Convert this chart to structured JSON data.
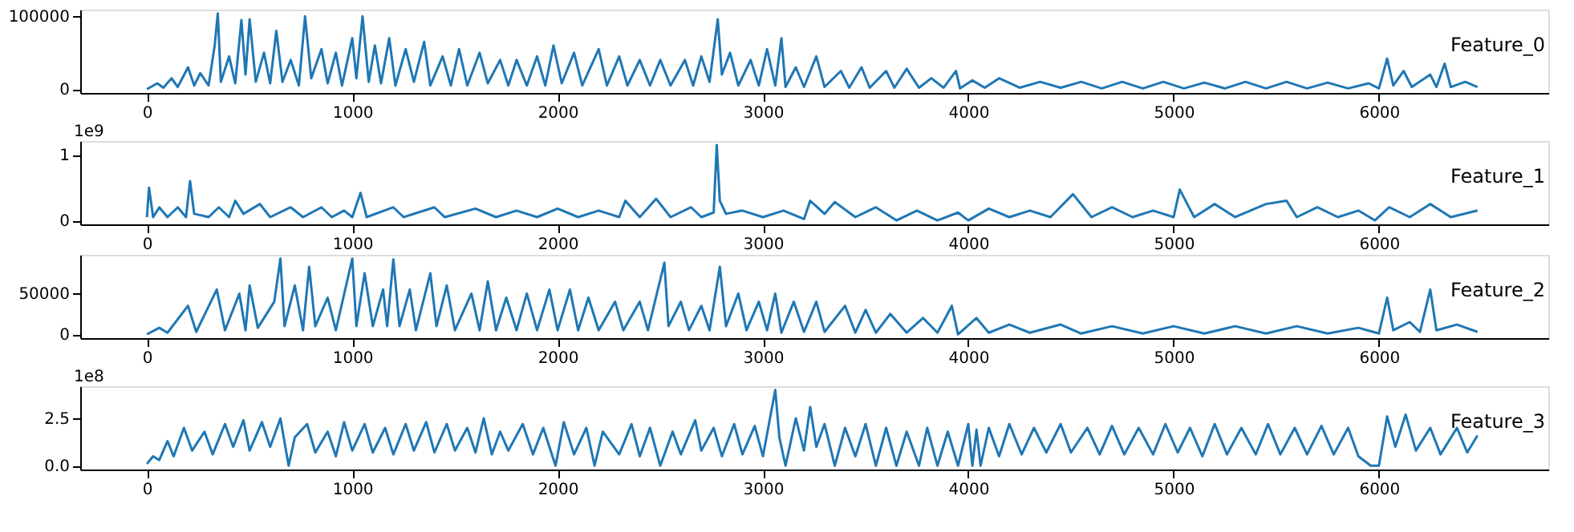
{
  "chart_data": [
    {
      "type": "line",
      "title": "Feature_0",
      "color": "#1f77b4",
      "xlim": [
        -325,
        6825
      ],
      "xticks": [
        0,
        1000,
        2000,
        3000,
        4000,
        5000,
        6000
      ],
      "ylim": [
        -5200,
        109200
      ],
      "yticks": [
        0,
        100000
      ],
      "x": [
        0,
        50,
        80,
        120,
        150,
        200,
        230,
        260,
        300,
        330,
        345,
        360,
        400,
        430,
        460,
        480,
        500,
        530,
        570,
        600,
        630,
        660,
        700,
        740,
        770,
        800,
        850,
        880,
        920,
        950,
        1000,
        1020,
        1050,
        1080,
        1110,
        1140,
        1180,
        1210,
        1260,
        1300,
        1350,
        1380,
        1440,
        1480,
        1520,
        1560,
        1620,
        1660,
        1720,
        1760,
        1800,
        1850,
        1900,
        1940,
        1980,
        2020,
        2080,
        2120,
        2200,
        2240,
        2300,
        2340,
        2400,
        2450,
        2500,
        2550,
        2620,
        2660,
        2700,
        2740,
        2780,
        2800,
        2840,
        2880,
        2940,
        2980,
        3020,
        3060,
        3090,
        3110,
        3160,
        3200,
        3260,
        3300,
        3380,
        3420,
        3480,
        3520,
        3600,
        3640,
        3700,
        3760,
        3820,
        3880,
        3940,
        3960,
        4020,
        4080,
        4150,
        4250,
        4350,
        4450,
        4550,
        4650,
        4750,
        4850,
        4950,
        5050,
        5150,
        5250,
        5350,
        5450,
        5550,
        5650,
        5750,
        5850,
        5950,
        6000,
        6040,
        6070,
        6120,
        6160,
        6250,
        6280,
        6320,
        6350,
        6420,
        6480
      ],
      "values": [
        0,
        8000,
        2000,
        15000,
        3000,
        30000,
        5000,
        22000,
        5000,
        60000,
        104000,
        10000,
        45000,
        8000,
        95000,
        20000,
        96000,
        10000,
        50000,
        8000,
        80000,
        10000,
        40000,
        5000,
        100000,
        15000,
        55000,
        8000,
        50000,
        5000,
        70000,
        15000,
        100000,
        10000,
        60000,
        8000,
        70000,
        5000,
        55000,
        10000,
        65000,
        5000,
        45000,
        5000,
        55000,
        5000,
        50000,
        8000,
        40000,
        5000,
        40000,
        5000,
        45000,
        5000,
        60000,
        8000,
        50000,
        5000,
        55000,
        5000,
        45000,
        5000,
        40000,
        5000,
        40000,
        5000,
        40000,
        5000,
        45000,
        10000,
        96000,
        20000,
        50000,
        5000,
        40000,
        5000,
        55000,
        5000,
        70000,
        3000,
        30000,
        3000,
        45000,
        3000,
        25000,
        2000,
        30000,
        2000,
        25000,
        2000,
        28000,
        2000,
        15000,
        2000,
        25000,
        1000,
        12000,
        2000,
        15000,
        2000,
        10000,
        2000,
        10000,
        1000,
        10000,
        1000,
        10000,
        1000,
        9000,
        1000,
        10000,
        1000,
        10000,
        1000,
        9000,
        1000,
        8000,
        1000,
        42000,
        5000,
        25000,
        3000,
        20000,
        3000,
        35000,
        3000,
        10000,
        3000
      ]
    },
    {
      "type": "line",
      "title": "Feature_1",
      "annotations": [
        "1e9"
      ],
      "color": "#1f77b4",
      "xlim": [
        -325,
        6825
      ],
      "xticks": [
        0,
        1000,
        2000,
        3000,
        4000,
        5000,
        6000
      ],
      "ylim": [
        -0.06,
        1.21
      ],
      "yticks": [
        0,
        1
      ],
      "x": [
        0,
        10,
        30,
        60,
        100,
        150,
        190,
        210,
        230,
        300,
        350,
        400,
        430,
        470,
        550,
        600,
        700,
        760,
        850,
        900,
        960,
        1000,
        1040,
        1070,
        1200,
        1250,
        1400,
        1450,
        1600,
        1700,
        1800,
        1900,
        2000,
        2100,
        2200,
        2300,
        2330,
        2400,
        2480,
        2550,
        2650,
        2700,
        2760,
        2775,
        2790,
        2820,
        2900,
        3000,
        3100,
        3200,
        3230,
        3300,
        3350,
        3450,
        3550,
        3650,
        3750,
        3850,
        3950,
        4000,
        4100,
        4200,
        4300,
        4400,
        4510,
        4600,
        4700,
        4800,
        4900,
        5000,
        5030,
        5100,
        5200,
        5300,
        5450,
        5550,
        5600,
        5700,
        5800,
        5900,
        5980,
        6050,
        6150,
        6250,
        6350,
        6480
      ],
      "values": [
        0.05,
        0.5,
        0.05,
        0.2,
        0.05,
        0.2,
        0.05,
        0.6,
        0.1,
        0.05,
        0.2,
        0.05,
        0.3,
        0.1,
        0.25,
        0.05,
        0.2,
        0.05,
        0.2,
        0.05,
        0.15,
        0.05,
        0.42,
        0.05,
        0.2,
        0.05,
        0.2,
        0.05,
        0.18,
        0.05,
        0.15,
        0.05,
        0.18,
        0.05,
        0.15,
        0.05,
        0.3,
        0.05,
        0.33,
        0.05,
        0.2,
        0.05,
        0.12,
        1.15,
        0.3,
        0.1,
        0.15,
        0.05,
        0.15,
        0.02,
        0.3,
        0.1,
        0.28,
        0.05,
        0.2,
        0.0,
        0.15,
        0.0,
        0.12,
        0.0,
        0.18,
        0.05,
        0.15,
        0.05,
        0.4,
        0.05,
        0.2,
        0.05,
        0.15,
        0.05,
        0.47,
        0.05,
        0.25,
        0.05,
        0.25,
        0.3,
        0.05,
        0.2,
        0.05,
        0.15,
        0.0,
        0.2,
        0.05,
        0.25,
        0.05,
        0.15
      ]
    },
    {
      "type": "line",
      "title": "Feature_2",
      "color": "#1f77b4",
      "xlim": [
        -325,
        6825
      ],
      "xticks": [
        0,
        1000,
        2000,
        3000,
        4000,
        5000,
        6000
      ],
      "ylim": [
        -4650,
        97650
      ],
      "yticks": [
        0,
        50000
      ],
      "x": [
        0,
        60,
        100,
        200,
        240,
        340,
        380,
        450,
        480,
        500,
        540,
        620,
        650,
        670,
        720,
        760,
        790,
        820,
        880,
        920,
        1000,
        1020,
        1060,
        1100,
        1150,
        1170,
        1200,
        1230,
        1280,
        1310,
        1380,
        1410,
        1460,
        1500,
        1580,
        1620,
        1660,
        1700,
        1750,
        1800,
        1850,
        1900,
        1960,
        2000,
        2060,
        2100,
        2150,
        2200,
        2280,
        2320,
        2400,
        2440,
        2520,
        2540,
        2600,
        2640,
        2700,
        2740,
        2790,
        2820,
        2880,
        2920,
        2980,
        3020,
        3060,
        3090,
        3150,
        3200,
        3260,
        3300,
        3400,
        3450,
        3500,
        3550,
        3620,
        3700,
        3780,
        3850,
        3920,
        3950,
        4040,
        4100,
        4200,
        4300,
        4450,
        4550,
        4700,
        4850,
        5000,
        5150,
        5300,
        5450,
        5600,
        5750,
        5900,
        6000,
        6040,
        6070,
        6150,
        6200,
        6250,
        6280,
        6380,
        6480
      ],
      "values": [
        0,
        8000,
        2000,
        35000,
        3000,
        55000,
        5000,
        50000,
        5000,
        60000,
        8000,
        40000,
        93000,
        10000,
        60000,
        5000,
        83000,
        10000,
        45000,
        5000,
        93000,
        10000,
        75000,
        10000,
        55000,
        10000,
        92000,
        10000,
        55000,
        5000,
        75000,
        10000,
        60000,
        5000,
        50000,
        5000,
        65000,
        5000,
        45000,
        5000,
        50000,
        5000,
        55000,
        5000,
        55000,
        5000,
        45000,
        5000,
        40000,
        5000,
        40000,
        5000,
        88000,
        10000,
        40000,
        5000,
        35000,
        5000,
        83000,
        10000,
        50000,
        5000,
        40000,
        5000,
        50000,
        2000,
        40000,
        3000,
        40000,
        3000,
        35000,
        2000,
        30000,
        2000,
        25000,
        2000,
        20000,
        2000,
        35000,
        0,
        20000,
        2000,
        12000,
        2000,
        12000,
        1000,
        10000,
        1000,
        10000,
        1000,
        10000,
        1000,
        10000,
        1000,
        8000,
        1000,
        45000,
        5000,
        15000,
        3000,
        55000,
        5000,
        12000,
        3000
      ]
    },
    {
      "type": "line",
      "title": "Feature_3",
      "annotations": [
        "1e8"
      ],
      "color": "#1f77b4",
      "xlim": [
        -325,
        6825
      ],
      "xticks": [
        0,
        1000,
        2000,
        3000,
        4000,
        5000,
        6000
      ],
      "ylim": [
        -0.2,
        4.2
      ],
      "yticks": [
        {
          "value": 0,
          "label": "0.0"
        },
        {
          "value": 2.5,
          "label": "2.5"
        }
      ],
      "x": [
        0,
        30,
        60,
        100,
        130,
        180,
        220,
        280,
        320,
        380,
        420,
        470,
        500,
        560,
        600,
        650,
        690,
        720,
        780,
        820,
        880,
        920,
        960,
        1000,
        1060,
        1100,
        1160,
        1200,
        1260,
        1300,
        1360,
        1400,
        1460,
        1500,
        1560,
        1600,
        1640,
        1680,
        1720,
        1760,
        1830,
        1880,
        1930,
        1990,
        2030,
        2080,
        2140,
        2180,
        2220,
        2300,
        2360,
        2400,
        2450,
        2500,
        2560,
        2600,
        2670,
        2700,
        2760,
        2800,
        2860,
        2900,
        2960,
        3000,
        3060,
        3080,
        3110,
        3160,
        3200,
        3230,
        3260,
        3300,
        3350,
        3400,
        3450,
        3500,
        3550,
        3600,
        3650,
        3700,
        3760,
        3800,
        3850,
        3900,
        3950,
        4000,
        4020,
        4040,
        4060,
        4100,
        4150,
        4200,
        4260,
        4320,
        4380,
        4450,
        4500,
        4580,
        4640,
        4700,
        4760,
        4830,
        4900,
        4960,
        5020,
        5080,
        5140,
        5200,
        5260,
        5330,
        5400,
        5460,
        5520,
        5590,
        5650,
        5720,
        5780,
        5850,
        5900,
        5960,
        6000,
        6040,
        6080,
        6130,
        6180,
        6250,
        6300,
        6380,
        6430,
        6480
      ],
      "values": [
        0.1,
        0.5,
        0.3,
        1.3,
        0.5,
        2.0,
        0.8,
        1.8,
        0.6,
        2.2,
        1.0,
        2.4,
        0.8,
        2.3,
        1.0,
        2.5,
        0.0,
        1.5,
        2.2,
        0.7,
        1.8,
        0.5,
        2.3,
        0.8,
        2.2,
        0.7,
        2.0,
        0.6,
        2.2,
        0.8,
        2.3,
        0.7,
        2.2,
        0.8,
        2.0,
        0.7,
        2.5,
        0.6,
        1.8,
        0.8,
        2.2,
        0.6,
        2.0,
        0.0,
        2.3,
        0.6,
        2.0,
        0.0,
        1.8,
        0.6,
        2.2,
        0.5,
        2.0,
        0.0,
        1.8,
        0.6,
        2.4,
        0.8,
        2.0,
        0.5,
        2.2,
        0.6,
        2.1,
        0.5,
        4.0,
        1.5,
        0.0,
        2.5,
        0.8,
        3.1,
        1.0,
        2.2,
        0.0,
        2.0,
        0.5,
        2.2,
        0.0,
        2.0,
        0.0,
        1.8,
        0.0,
        2.0,
        0.0,
        1.8,
        0.0,
        2.2,
        0.0,
        1.9,
        0.0,
        2.0,
        0.5,
        2.2,
        0.6,
        2.0,
        0.7,
        2.2,
        0.7,
        2.0,
        0.6,
        2.1,
        0.6,
        2.0,
        0.6,
        2.2,
        0.7,
        2.0,
        0.5,
        2.2,
        0.6,
        2.0,
        0.6,
        2.2,
        0.6,
        2.0,
        0.6,
        2.1,
        0.6,
        2.0,
        0.5,
        0.0,
        0.0,
        2.6,
        1.0,
        2.7,
        0.8,
        2.0,
        0.6,
        2.0,
        0.7,
        1.6
      ]
    }
  ]
}
